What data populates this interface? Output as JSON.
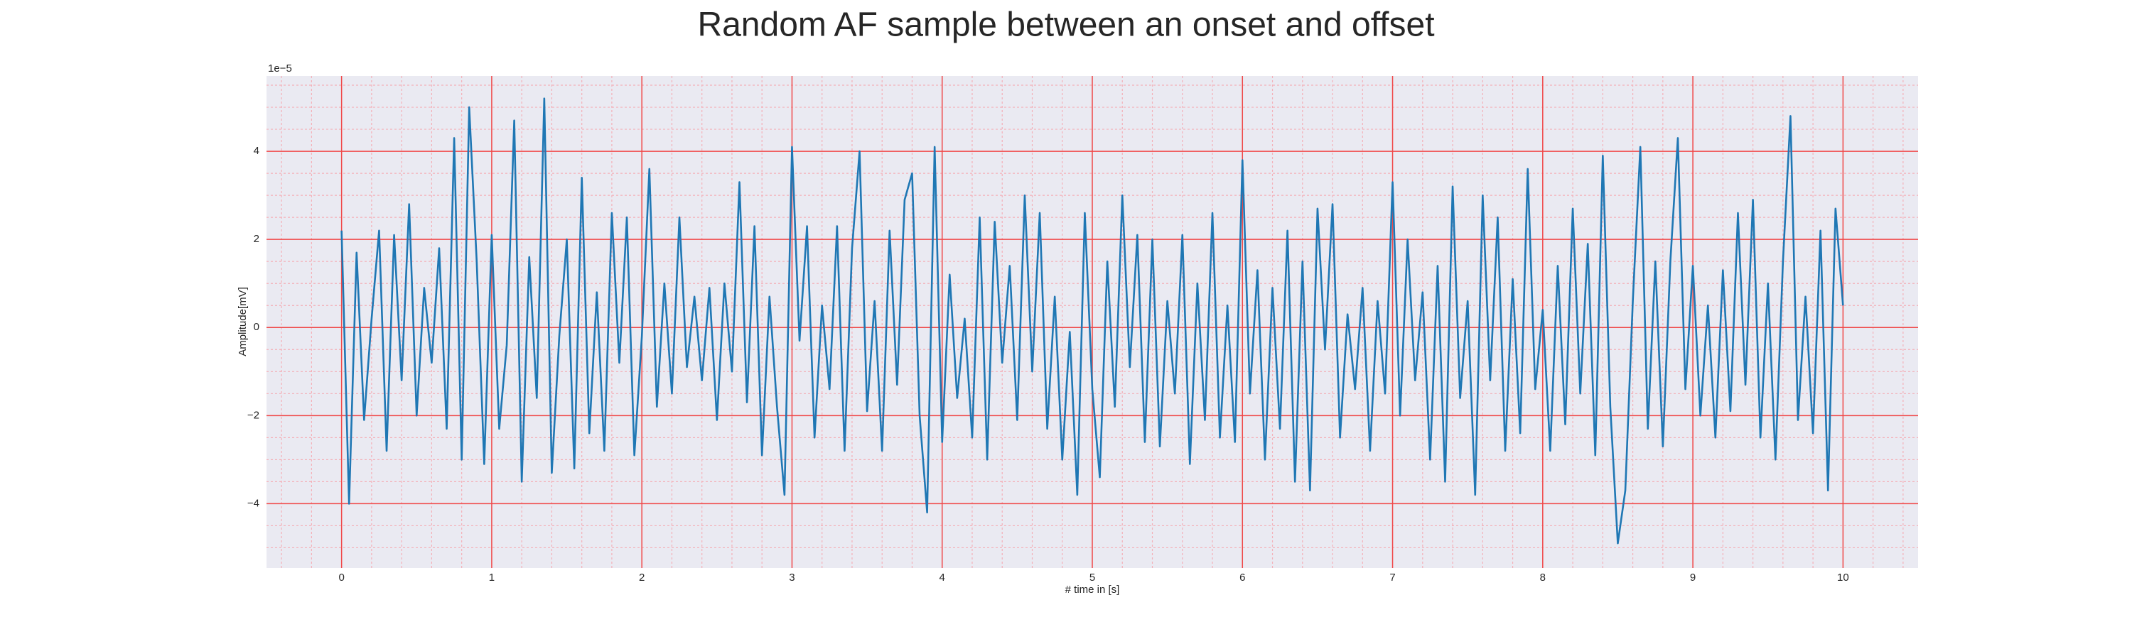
{
  "chart_data": {
    "type": "line",
    "title": "Random AF sample between an onset and offset",
    "xlabel": "# time in [s]",
    "ylabel": "Amplitude[mV]",
    "y_offset_label": "1e−5",
    "xlim": [
      -0.5,
      10.5
    ],
    "ylim": [
      -5.46,
      5.71
    ],
    "xticks": [
      0,
      1,
      2,
      3,
      4,
      5,
      6,
      7,
      8,
      9,
      10
    ],
    "yticks": [
      {
        "value": -4,
        "label": "−4"
      },
      {
        "value": -2,
        "label": "−2"
      },
      0,
      2,
      4
    ],
    "xminorticks": [
      -0.4,
      -0.2,
      0.2,
      0.4,
      0.6,
      0.8,
      1.2,
      1.4,
      1.6,
      1.8,
      2.2,
      2.4,
      2.6,
      2.8,
      3.2,
      3.4,
      3.6,
      3.8,
      4.2,
      4.4,
      4.6,
      4.8,
      5.2,
      5.4,
      5.6,
      5.8,
      6.2,
      6.4,
      6.6,
      6.8,
      7.2,
      7.4,
      7.6,
      7.8,
      8.2,
      8.4,
      8.6,
      8.8,
      9.2,
      9.4,
      9.6,
      9.8,
      10.2,
      10.4
    ],
    "yminorticks": [
      -5,
      -4.5,
      -3.5,
      -3,
      -2.5,
      -1.5,
      -1,
      -0.5,
      0.5,
      1,
      1.5,
      2.5,
      3,
      3.5,
      4.5,
      5,
      5.5
    ],
    "grid": true,
    "grid_color": "#f04848",
    "minor_grid_color": "#f4b0b8",
    "background": "#eaeaf2",
    "series": [
      {
        "color": "#1f77b4",
        "x": [
          0,
          0.05,
          0.1,
          0.15,
          0.2,
          0.25,
          0.3,
          0.35,
          0.4,
          0.45,
          0.5,
          0.55,
          0.6,
          0.65,
          0.7,
          0.75,
          0.8,
          0.85,
          0.9,
          0.95,
          1,
          1.05,
          1.1,
          1.15,
          1.2,
          1.25,
          1.3,
          1.35,
          1.4,
          1.45,
          1.5,
          1.55,
          1.6,
          1.65,
          1.7,
          1.75,
          1.8,
          1.85,
          1.9,
          1.95,
          2,
          2.05,
          2.1,
          2.15,
          2.2,
          2.25,
          2.3,
          2.35,
          2.4,
          2.45,
          2.5,
          2.55,
          2.6,
          2.65,
          2.7,
          2.75,
          2.8,
          2.85,
          2.9,
          2.95,
          3,
          3.05,
          3.1,
          3.15,
          3.2,
          3.25,
          3.3,
          3.35,
          3.4,
          3.45,
          3.5,
          3.55,
          3.6,
          3.65,
          3.7,
          3.75,
          3.8,
          3.85,
          3.9,
          3.95,
          4,
          4.05,
          4.1,
          4.15,
          4.2,
          4.25,
          4.3,
          4.35,
          4.4,
          4.45,
          4.5,
          4.55,
          4.6,
          4.65,
          4.7,
          4.75,
          4.8,
          4.85,
          4.9,
          4.95,
          5,
          5.05,
          5.1,
          5.15,
          5.2,
          5.25,
          5.3,
          5.35,
          5.4,
          5.45,
          5.5,
          5.55,
          5.6,
          5.65,
          5.7,
          5.75,
          5.8,
          5.85,
          5.9,
          5.95,
          6,
          6.05,
          6.1,
          6.15,
          6.2,
          6.25,
          6.3,
          6.35,
          6.4,
          6.45,
          6.5,
          6.55,
          6.6,
          6.65,
          6.7,
          6.75,
          6.8,
          6.85,
          6.9,
          6.95,
          7,
          7.05,
          7.1,
          7.15,
          7.2,
          7.25,
          7.3,
          7.35,
          7.4,
          7.45,
          7.5,
          7.55,
          7.6,
          7.65,
          7.7,
          7.75,
          7.8,
          7.85,
          7.9,
          7.95,
          8,
          8.05,
          8.1,
          8.15,
          8.2,
          8.25,
          8.3,
          8.35,
          8.4,
          8.45,
          8.5,
          8.55,
          8.6,
          8.65,
          8.7,
          8.75,
          8.8,
          8.85,
          8.9,
          8.95,
          9,
          9.05,
          9.1,
          9.15,
          9.2,
          9.25,
          9.3,
          9.35,
          9.4,
          9.45,
          9.5,
          9.55,
          9.6,
          9.65,
          9.7,
          9.75,
          9.8,
          9.85,
          9.9,
          9.95,
          10
        ],
        "values": [
          2.2,
          -4.0,
          1.7,
          -2.1,
          0.2,
          2.2,
          -2.8,
          2.1,
          -1.2,
          2.8,
          -2.0,
          0.9,
          -0.8,
          1.8,
          -2.3,
          4.3,
          -3.0,
          5.0,
          1.5,
          -3.1,
          2.1,
          -2.3,
          -0.4,
          4.7,
          -3.5,
          1.6,
          -1.6,
          5.2,
          -3.3,
          -0.2,
          2.0,
          -3.2,
          3.4,
          -2.4,
          0.8,
          -2.8,
          2.6,
          -0.8,
          2.5,
          -2.9,
          -0.2,
          3.6,
          -1.8,
          1.0,
          -1.5,
          2.5,
          -0.9,
          0.7,
          -1.2,
          0.9,
          -2.1,
          1.0,
          -1.0,
          3.3,
          -1.7,
          2.3,
          -2.9,
          0.7,
          -1.8,
          -3.8,
          4.1,
          -0.3,
          2.3,
          -2.5,
          0.5,
          -1.4,
          2.3,
          -2.8,
          1.8,
          4.0,
          -1.9,
          0.6,
          -2.8,
          2.2,
          -1.3,
          2.9,
          3.5,
          -2.0,
          -4.2,
          4.1,
          -2.6,
          1.2,
          -1.6,
          0.2,
          -2.5,
          2.5,
          -3.0,
          2.4,
          -0.8,
          1.4,
          -2.1,
          3.0,
          -1.0,
          2.6,
          -2.3,
          0.7,
          -3.0,
          -0.1,
          -3.8,
          2.6,
          -1.4,
          -3.4,
          1.5,
          -1.8,
          3.0,
          -0.9,
          2.1,
          -2.6,
          2.0,
          -2.7,
          0.6,
          -1.5,
          2.1,
          -3.1,
          1.0,
          -2.1,
          2.6,
          -2.5,
          0.5,
          -2.6,
          3.8,
          -1.5,
          1.3,
          -3.0,
          0.9,
          -2.3,
          2.2,
          -3.5,
          1.5,
          -3.7,
          2.7,
          -0.5,
          2.8,
          -2.5,
          0.3,
          -1.4,
          0.9,
          -2.8,
          0.6,
          -1.5,
          3.3,
          -2.0,
          2.0,
          -1.2,
          0.8,
          -3.0,
          1.4,
          -3.5,
          3.2,
          -1.6,
          0.6,
          -3.8,
          3.0,
          -1.2,
          2.5,
          -2.8,
          1.1,
          -2.4,
          3.6,
          -1.4,
          0.4,
          -2.8,
          1.4,
          -2.2,
          2.7,
          -1.5,
          1.9,
          -2.9,
          3.9,
          -1.8,
          -4.9,
          -3.7,
          0.6,
          4.1,
          -2.3,
          1.5,
          -2.7,
          1.5,
          4.3,
          -1.4,
          1.4,
          -2.0,
          0.5,
          -2.5,
          1.3,
          -1.9,
          2.6,
          -1.3,
          2.9,
          -2.5,
          1.0,
          -3.0,
          1.5,
          4.8,
          -2.1,
          0.7,
          -2.4,
          2.2,
          -3.7,
          2.7,
          0.5
        ]
      }
    ]
  }
}
